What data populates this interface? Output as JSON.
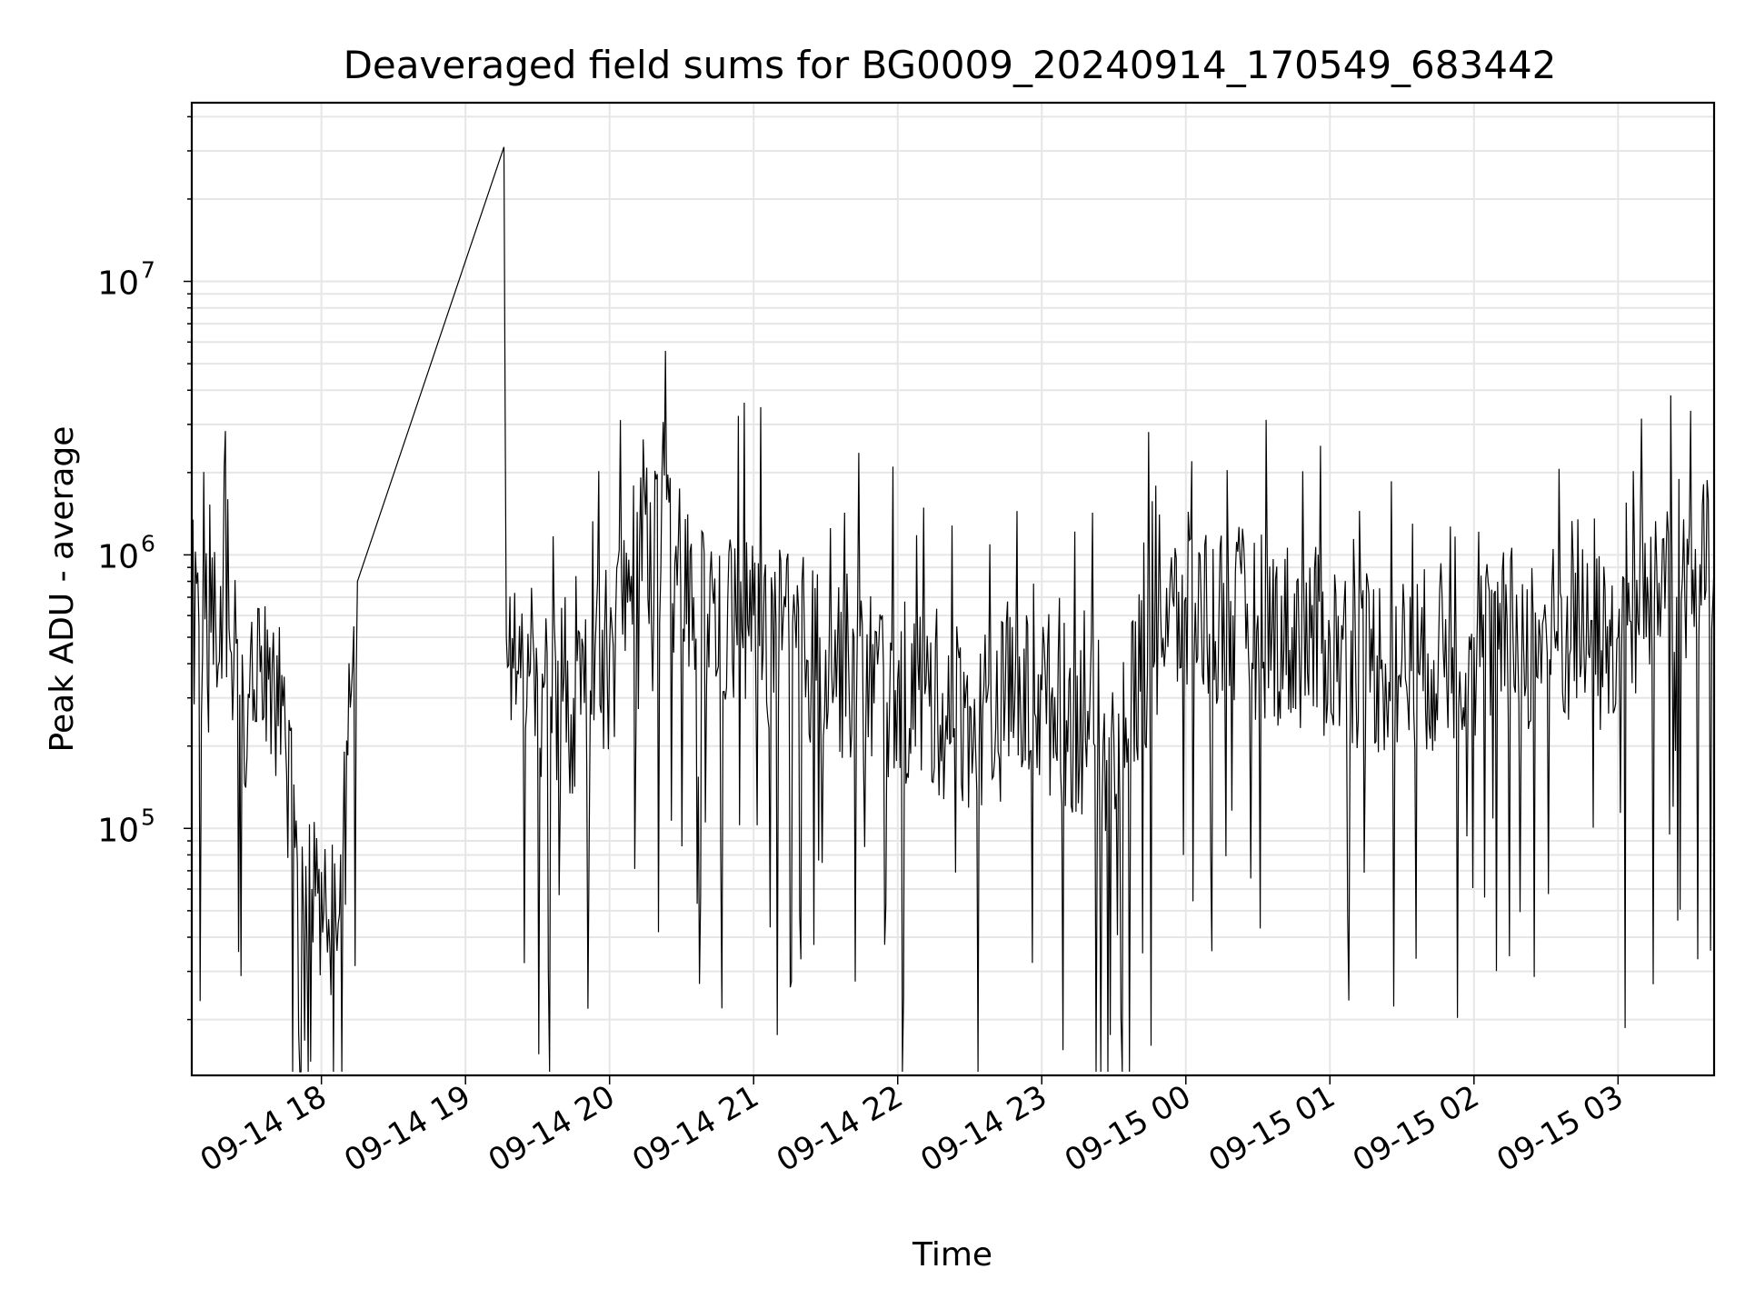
{
  "chart_data": {
    "type": "line",
    "title": "Deaveraged field sums for BG0009_20240914_170549_683442",
    "xlabel": "Time",
    "ylabel": "Peak ADU - average",
    "yscale": "log",
    "x_start": "2024-09-14T17:06",
    "x_end": "2024-09-15T03:40",
    "xlim": [
      "2024-09-14T17:06",
      "2024-09-15T03:40"
    ],
    "ylim": [
      12500,
      45000000
    ],
    "x_ticks": [
      {
        "t": "2024-09-14T18:00",
        "label": "09-14 18"
      },
      {
        "t": "2024-09-14T19:00",
        "label": "09-14 19"
      },
      {
        "t": "2024-09-14T20:00",
        "label": "09-14 20"
      },
      {
        "t": "2024-09-14T21:00",
        "label": "09-14 21"
      },
      {
        "t": "2024-09-14T22:00",
        "label": "09-14 22"
      },
      {
        "t": "2024-09-14T23:00",
        "label": "09-14 23"
      },
      {
        "t": "2024-09-15T00:00",
        "label": "09-15 00"
      },
      {
        "t": "2024-09-15T01:00",
        "label": "09-15 01"
      },
      {
        "t": "2024-09-15T02:00",
        "label": "09-15 02"
      },
      {
        "t": "2024-09-15T03:00",
        "label": "09-15 03"
      }
    ],
    "y_ticks": [
      {
        "value": 100000,
        "base": "10",
        "exp": "5"
      },
      {
        "value": 1000000,
        "base": "10",
        "exp": "6"
      },
      {
        "value": 10000000,
        "base": "10",
        "exp": "7"
      }
    ],
    "grid": true,
    "line_color": "#000000",
    "grid_color": "#e6e6e6",
    "series": [
      {
        "points": [
          [
            "2024-09-14T17:06",
            700000
          ],
          [
            "2024-09-14T17:14",
            520000
          ],
          [
            "2024-09-14T17:22",
            450000
          ],
          [
            "2024-09-14T17:30",
            300000
          ],
          [
            "2024-09-14T17:38",
            350000
          ],
          [
            "2024-09-14T17:44",
            280000
          ],
          [
            "2024-09-14T17:50",
            75000
          ],
          [
            "2024-09-14T17:56",
            60000
          ],
          [
            "2024-09-14T18:02",
            50000
          ],
          [
            "2024-09-14T18:09",
            80000
          ],
          [
            "2024-09-14T18:15",
            800000
          ],
          [
            "2024-09-14T19:16",
            31000000
          ],
          [
            "2024-09-14T19:17",
            500000
          ],
          [
            "2024-09-14T19:30",
            350000
          ],
          [
            "2024-09-14T19:45",
            300000
          ],
          [
            "2024-09-14T20:00",
            450000
          ],
          [
            "2024-09-14T20:15",
            1400000
          ],
          [
            "2024-09-14T20:35",
            700000
          ],
          [
            "2024-09-14T21:00",
            600000
          ],
          [
            "2024-09-14T21:30",
            450000
          ],
          [
            "2024-09-14T22:00",
            350000
          ],
          [
            "2024-09-14T22:30",
            280000
          ],
          [
            "2024-09-14T23:00",
            320000
          ],
          [
            "2024-09-14T23:30",
            220000
          ],
          [
            "2024-09-14T23:45",
            500000
          ],
          [
            "2024-09-15T00:00",
            700000
          ],
          [
            "2024-09-15T00:30",
            600000
          ],
          [
            "2024-09-15T01:00",
            500000
          ],
          [
            "2024-09-15T01:30",
            420000
          ],
          [
            "2024-09-15T02:00",
            500000
          ],
          [
            "2024-09-15T02:30",
            550000
          ],
          [
            "2024-09-15T03:00",
            500000
          ],
          [
            "2024-09-15T03:20",
            1000000
          ],
          [
            "2024-09-15T03:40",
            900000
          ]
        ]
      }
    ]
  }
}
